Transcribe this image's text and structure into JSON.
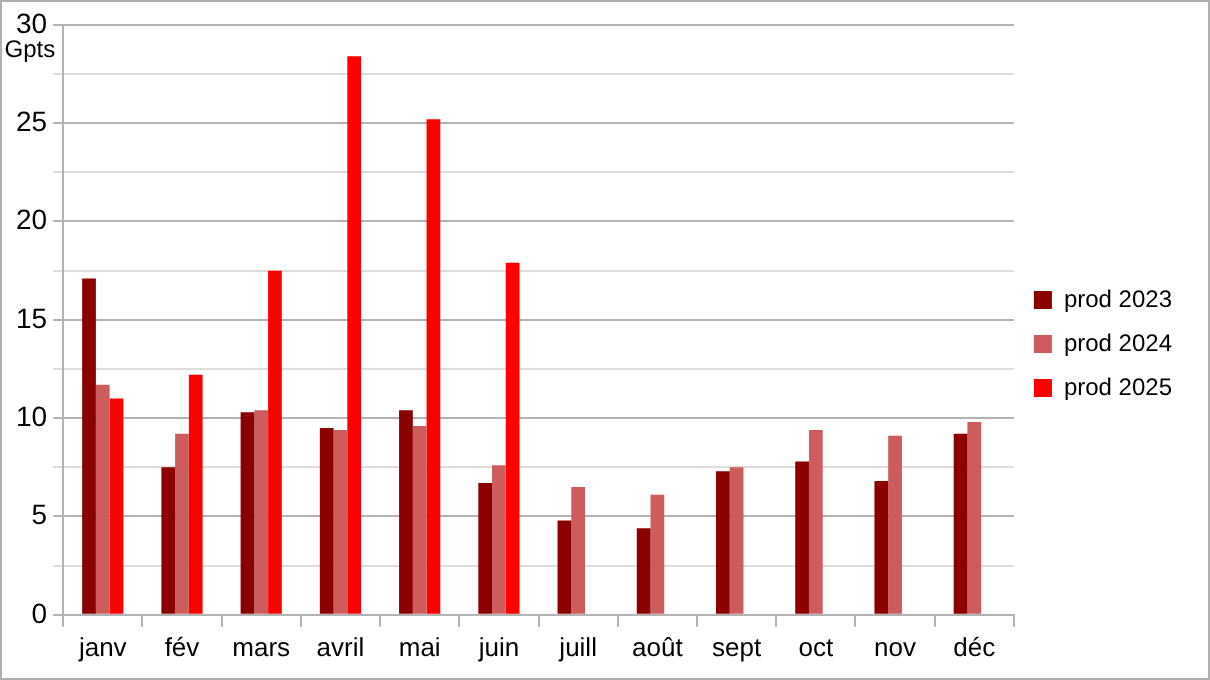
{
  "chart_data": {
    "type": "bar",
    "ylabel": "Gpts",
    "categories": [
      "janv",
      "fév",
      "mars",
      "avril",
      "mai",
      "juin",
      "juill",
      "août",
      "sept",
      "oct",
      "nov",
      "déc"
    ],
    "series": [
      {
        "name": "prod 2023",
        "color": "#8b0000",
        "values": [
          17.1,
          7.5,
          10.3,
          9.5,
          10.4,
          6.7,
          4.8,
          4.4,
          7.3,
          7.8,
          6.8,
          9.2
        ]
      },
      {
        "name": "prod 2024",
        "color": "#cd5c5c",
        "values": [
          11.7,
          9.2,
          10.4,
          9.4,
          9.6,
          7.6,
          6.5,
          6.1,
          7.5,
          9.4,
          9.1,
          9.8
        ]
      },
      {
        "name": "prod 2025",
        "color": "#ff0000",
        "values": [
          11.0,
          12.2,
          17.5,
          28.4,
          25.2,
          17.9,
          null,
          null,
          null,
          null,
          null,
          null
        ]
      }
    ],
    "ylim": [
      0,
      30
    ],
    "yticks": [
      0,
      {
        "value": 2.5,
        "label": null
      },
      5,
      {
        "value": 7.5,
        "label": null
      },
      10,
      {
        "value": 12.5,
        "label": null
      },
      15,
      {
        "value": 17.5,
        "label": null
      },
      20,
      {
        "value": 22.5,
        "label": null
      },
      25,
      {
        "value": 27.5,
        "label": null
      },
      30
    ],
    "grid": "y",
    "legend": "right"
  }
}
